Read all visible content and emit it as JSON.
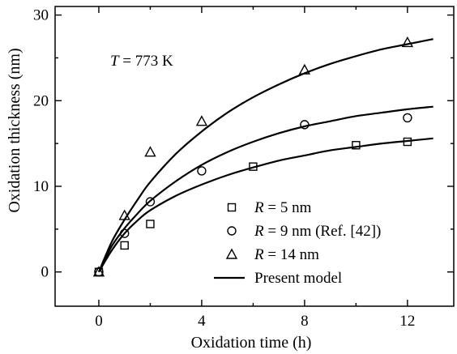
{
  "chart_data": {
    "type": "scatter",
    "xlabel": "Oxidation time (h)",
    "ylabel": "Oxidation thickness (nm)",
    "xlim": [
      -1.7,
      13.8
    ],
    "ylim": [
      -4,
      31
    ],
    "xticks": [
      0,
      4,
      8,
      12
    ],
    "yticks": [
      0,
      10,
      20,
      30
    ],
    "xtick_labels": [
      "0",
      "4",
      "8",
      "12"
    ],
    "ytick_labels": [
      "0",
      "10",
      "20",
      "30"
    ],
    "grid": false,
    "legend_position": "lower-right",
    "annotation": {
      "var": "T",
      "rest": " = 773 K"
    },
    "series": [
      {
        "name_var": "R",
        "name_rest": " = 5 nm",
        "marker": "square",
        "x": [
          0,
          1,
          2,
          6,
          10,
          12
        ],
        "y": [
          0,
          3.1,
          5.6,
          12.3,
          14.8,
          15.2
        ]
      },
      {
        "name_var": "R",
        "name_rest": " = 9 nm   (Ref. [42])",
        "marker": "circle",
        "x": [
          0,
          1,
          2,
          4,
          8,
          12
        ],
        "y": [
          0,
          4.5,
          8.2,
          11.8,
          17.2,
          18.0
        ]
      },
      {
        "name_var": "R",
        "name_rest": " = 14 nm",
        "marker": "triangle",
        "x": [
          0,
          1,
          2,
          4,
          8,
          12
        ],
        "y": [
          0,
          6.6,
          14.0,
          17.6,
          23.6,
          26.8
        ]
      }
    ],
    "model_curves": [
      {
        "x": [
          0,
          0.5,
          1,
          1.5,
          2,
          3,
          4,
          5,
          6,
          7,
          8,
          9,
          10,
          11,
          12,
          13
        ],
        "y": [
          0,
          2.5,
          4.5,
          6.0,
          7.2,
          8.9,
          10.2,
          11.3,
          12.2,
          13.0,
          13.6,
          14.2,
          14.6,
          15.0,
          15.3,
          15.6
        ]
      },
      {
        "x": [
          0,
          0.5,
          1,
          1.5,
          2,
          3,
          4,
          5,
          6,
          7,
          8,
          9,
          10,
          11,
          12,
          13
        ],
        "y": [
          0,
          3.0,
          5.1,
          6.8,
          8.3,
          10.6,
          12.5,
          14.0,
          15.2,
          16.2,
          17.0,
          17.6,
          18.2,
          18.6,
          19.0,
          19.3
        ]
      },
      {
        "x": [
          0,
          0.5,
          1,
          1.5,
          2,
          3,
          4,
          5,
          6,
          7,
          8,
          9,
          10,
          11,
          12,
          13
        ],
        "y": [
          0,
          3.5,
          6.1,
          8.4,
          10.5,
          13.8,
          16.4,
          18.6,
          20.4,
          21.9,
          23.2,
          24.3,
          25.2,
          26.0,
          26.6,
          27.2
        ]
      }
    ],
    "model_label": "Present model"
  }
}
